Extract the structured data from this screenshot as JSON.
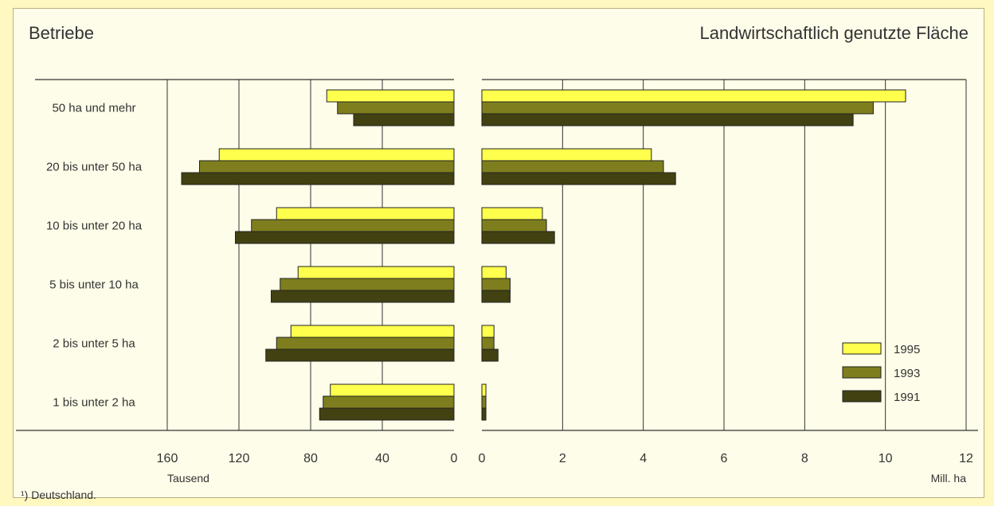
{
  "footnote": "¹) Deutschland.",
  "colors": {
    "1995": "#ffff4d",
    "1993": "#7e7e1e",
    "1991": "#414112"
  },
  "chart_data": [
    {
      "type": "bar",
      "orientation": "horizontal-reversed",
      "title": "Betriebe",
      "unit": "Tausend",
      "xlim": [
        0,
        160
      ],
      "ticks": [
        160,
        120,
        80,
        40,
        0
      ],
      "categories": [
        "50 ha und mehr",
        "20 bis unter 50 ha",
        "10 bis unter 20 ha",
        "5 bis unter 10 ha",
        "2 bis unter 5 ha",
        "1 bis unter 2 ha"
      ],
      "series": [
        {
          "name": "1995",
          "values": [
            71,
            131,
            99,
            87,
            91,
            69
          ]
        },
        {
          "name": "1993",
          "values": [
            65,
            142,
            113,
            97,
            99,
            73
          ]
        },
        {
          "name": "1991",
          "values": [
            56,
            152,
            122,
            102,
            105,
            75
          ]
        }
      ],
      "grid": true
    },
    {
      "type": "bar",
      "orientation": "horizontal",
      "title": "Landwirtschaftlich genutzte Fläche",
      "unit": "Mill. ha",
      "xlim": [
        0,
        12
      ],
      "ticks": [
        0,
        2,
        4,
        6,
        8,
        10,
        12
      ],
      "categories": [
        "50 ha und mehr",
        "20 bis unter 50 ha",
        "10 bis unter 20 ha",
        "5 bis unter 10 ha",
        "2 bis unter 5 ha",
        "1 bis unter 2 ha"
      ],
      "series": [
        {
          "name": "1995",
          "values": [
            10.5,
            4.2,
            1.5,
            0.6,
            0.3,
            0.1
          ]
        },
        {
          "name": "1993",
          "values": [
            9.7,
            4.5,
            1.6,
            0.7,
            0.3,
            0.1
          ]
        },
        {
          "name": "1991",
          "values": [
            9.2,
            4.8,
            1.8,
            0.7,
            0.4,
            0.1
          ]
        }
      ],
      "grid": true,
      "legend": "bottom-right"
    }
  ]
}
